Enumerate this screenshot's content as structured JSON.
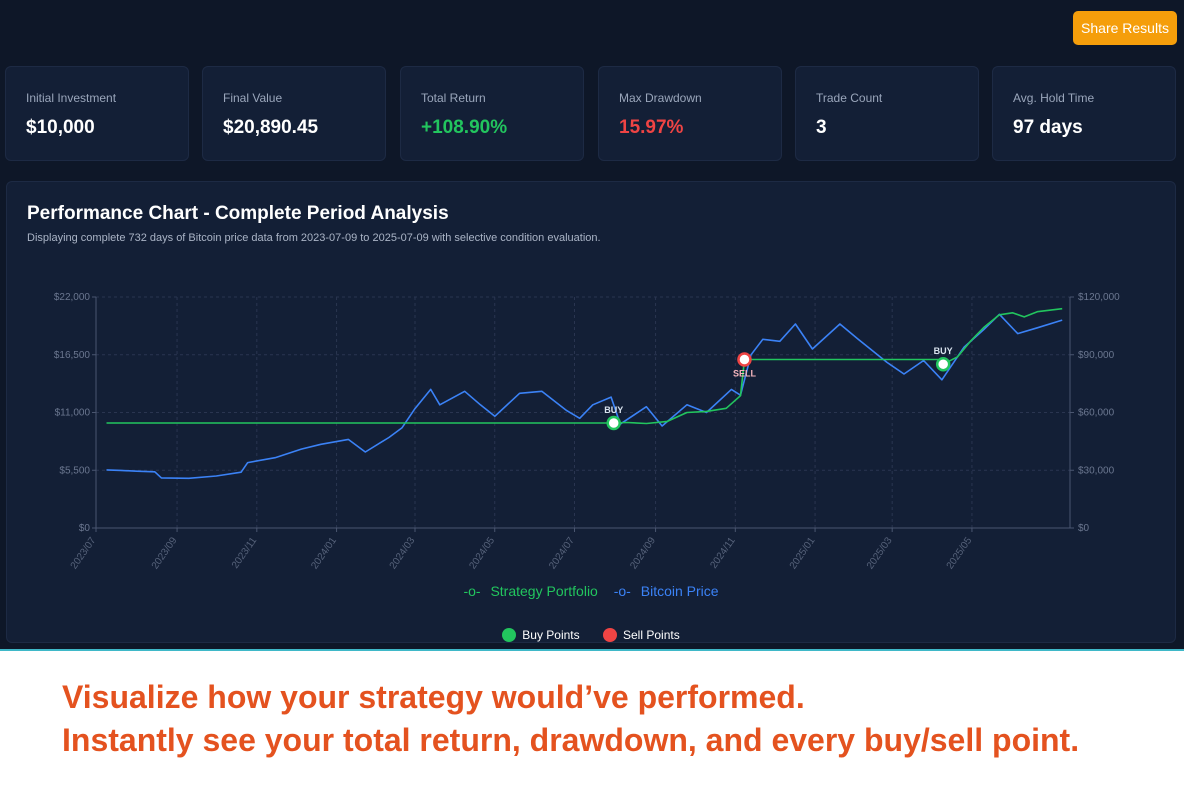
{
  "header": {
    "share_label": "Share Results"
  },
  "metrics": [
    {
      "label": "Initial Investment",
      "value": "$10,000",
      "color": "#ffffff"
    },
    {
      "label": "Final Value",
      "value": "$20,890.45",
      "color": "#ffffff"
    },
    {
      "label": "Total Return",
      "value": "+108.90%",
      "color": "#22c55e"
    },
    {
      "label": "Max Drawdown",
      "value": "15.97%",
      "color": "#ef4444"
    },
    {
      "label": "Trade Count",
      "value": "3",
      "color": "#ffffff"
    },
    {
      "label": "Avg. Hold Time",
      "value": "97 days",
      "color": "#ffffff"
    }
  ],
  "panel": {
    "title": "Performance Chart - Complete Period Analysis",
    "subtitle": "Displaying complete 732 days of Bitcoin price data from 2023-07-09 to 2025-07-09 with selective condition evaluation."
  },
  "points_legend": {
    "buy": "Buy Points",
    "sell": "Sell Points"
  },
  "caption": {
    "line1": "Visualize how your strategy would’ve performed.",
    "line2": "Instantly see your total return, drawdown, and every buy/sell point."
  },
  "colors": {
    "strategy": "#22c55e",
    "bitcoin": "#3b82f6",
    "buy": "#22c55e",
    "sell": "#ef4444",
    "accent": "#f59e0b",
    "caption": "#e4521f"
  },
  "chart_data": {
    "type": "line",
    "x_ticks": [
      "2023/07",
      "2023/09",
      "2023/11",
      "2024/01",
      "2024/03",
      "2024/05",
      "2024/07",
      "2024/09",
      "2024/11",
      "2025/01",
      "2025/03",
      "2025/05"
    ],
    "y_left_ticks": [
      "$0",
      "$5,500",
      "$11,000",
      "$16,500",
      "$22,000"
    ],
    "y_right_ticks": [
      "$0",
      "$30,000",
      "$60,000",
      "$90,000",
      "$120,000"
    ],
    "ylim_left": [
      0,
      22000
    ],
    "ylim_right": [
      0,
      120000
    ],
    "grid": true,
    "legend_position": "bottom",
    "series": [
      {
        "name": "Strategy Portfolio",
        "axis": "left",
        "points": [
          [
            "2023-07-09",
            10000
          ],
          [
            "2024-07-31",
            10000
          ],
          [
            "2024-08-10",
            10050
          ],
          [
            "2024-08-25",
            9950
          ],
          [
            "2024-09-10",
            10150
          ],
          [
            "2024-09-25",
            11000
          ],
          [
            "2024-10-10",
            11100
          ],
          [
            "2024-10-25",
            11400
          ],
          [
            "2024-11-05",
            12600
          ],
          [
            "2024-11-08",
            16050
          ],
          [
            "2025-04-05",
            16050
          ],
          [
            "2025-04-09",
            15600
          ],
          [
            "2025-04-20",
            16300
          ],
          [
            "2025-04-30",
            17800
          ],
          [
            "2025-05-10",
            19100
          ],
          [
            "2025-05-22",
            20300
          ],
          [
            "2025-06-01",
            20500
          ],
          [
            "2025-06-10",
            20100
          ],
          [
            "2025-06-20",
            20600
          ],
          [
            "2025-07-09",
            20890
          ]
        ]
      },
      {
        "name": "Bitcoin Price",
        "axis": "right",
        "points": [
          [
            "2023-07-09",
            30200
          ],
          [
            "2023-07-20",
            29900
          ],
          [
            "2023-08-01",
            29500
          ],
          [
            "2023-08-15",
            29200
          ],
          [
            "2023-08-20",
            26000
          ],
          [
            "2023-09-10",
            25800
          ],
          [
            "2023-10-01",
            27000
          ],
          [
            "2023-10-20",
            29000
          ],
          [
            "2023-10-25",
            34000
          ],
          [
            "2023-11-15",
            36500
          ],
          [
            "2023-12-05",
            41000
          ],
          [
            "2023-12-20",
            43500
          ],
          [
            "2024-01-10",
            46000
          ],
          [
            "2024-01-23",
            39500
          ],
          [
            "2024-02-10",
            47000
          ],
          [
            "2024-02-20",
            52000
          ],
          [
            "2024-03-01",
            62000
          ],
          [
            "2024-03-13",
            72000
          ],
          [
            "2024-03-20",
            64000
          ],
          [
            "2024-04-08",
            71000
          ],
          [
            "2024-04-20",
            64000
          ],
          [
            "2024-05-01",
            58000
          ],
          [
            "2024-05-20",
            70000
          ],
          [
            "2024-06-06",
            71000
          ],
          [
            "2024-06-25",
            61000
          ],
          [
            "2024-07-05",
            57000
          ],
          [
            "2024-07-15",
            64000
          ],
          [
            "2024-07-29",
            68000
          ],
          [
            "2024-08-05",
            54000
          ],
          [
            "2024-08-25",
            63000
          ],
          [
            "2024-09-06",
            53000
          ],
          [
            "2024-09-25",
            64000
          ],
          [
            "2024-10-10",
            60000
          ],
          [
            "2024-10-29",
            72000
          ],
          [
            "2024-11-05",
            69000
          ],
          [
            "2024-11-13",
            90000
          ],
          [
            "2024-11-22",
            98000
          ],
          [
            "2024-12-05",
            97000
          ],
          [
            "2024-12-17",
            106000
          ],
          [
            "2024-12-30",
            93000
          ],
          [
            "2025-01-20",
            106000
          ],
          [
            "2025-02-03",
            98000
          ],
          [
            "2025-02-25",
            86000
          ],
          [
            "2025-03-10",
            80000
          ],
          [
            "2025-03-25",
            87000
          ],
          [
            "2025-04-08",
            77000
          ],
          [
            "2025-04-25",
            94000
          ],
          [
            "2025-05-10",
            103000
          ],
          [
            "2025-05-22",
            111000
          ],
          [
            "2025-06-05",
            101000
          ],
          [
            "2025-06-20",
            104000
          ],
          [
            "2025-07-09",
            108000
          ]
        ]
      }
    ],
    "markers": [
      {
        "type": "buy",
        "date": "2024-07-31",
        "value": 10000,
        "label": "BUY"
      },
      {
        "type": "sell",
        "date": "2024-11-08",
        "value": 16050,
        "label": "SELL"
      },
      {
        "type": "buy",
        "date": "2025-04-09",
        "value": 15600,
        "label": "BUY"
      }
    ]
  }
}
